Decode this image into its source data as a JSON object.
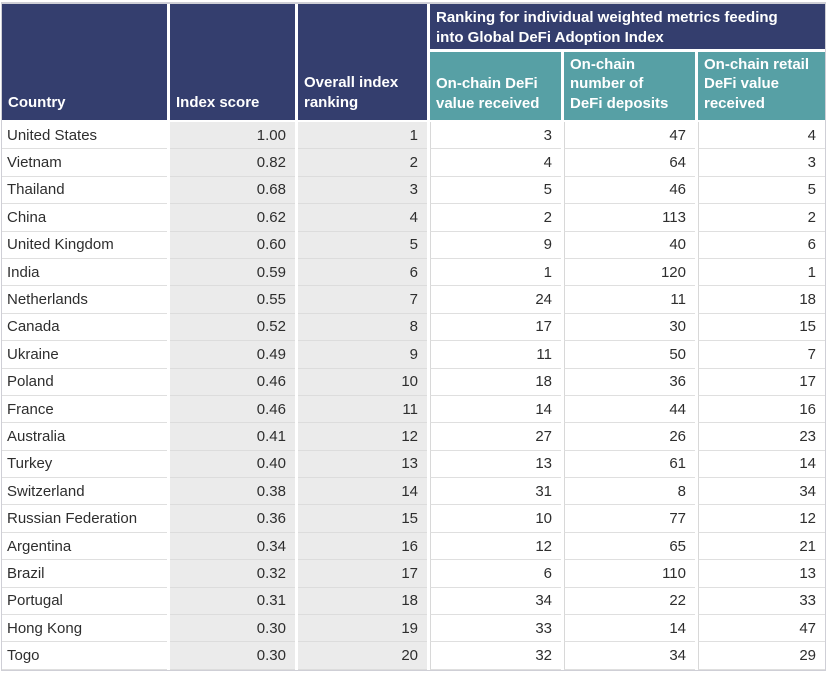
{
  "colors": {
    "header_navy": "#343e6e",
    "subheader_teal": "#57a0a5",
    "shaded_cell_gray": "#ebebeb",
    "header_text": "#ffffff",
    "body_text": "#2e2e2e"
  },
  "chart_data": {
    "type": "table",
    "headers": {
      "country": "Country",
      "index_score": "Index score",
      "overall_index_ranking": "Overall index ranking",
      "metrics_group": "Ranking for individual weighted metrics feeding into Global DeFi Adoption Index",
      "onchain_defi_value_received": "On-chain DeFi value received",
      "onchain_number_of_defi_deposits": "On-chain number of DeFi deposits",
      "onchain_retail_defi_value_received": "On-chain retail DeFi value received"
    },
    "rows": [
      {
        "country": "United States",
        "index_score": "1.00",
        "overall_index_ranking": "1",
        "onchain_defi_value_received": "3",
        "onchain_number_of_defi_deposits": "47",
        "onchain_retail_defi_value_received": "4"
      },
      {
        "country": "Vietnam",
        "index_score": "0.82",
        "overall_index_ranking": "2",
        "onchain_defi_value_received": "4",
        "onchain_number_of_defi_deposits": "64",
        "onchain_retail_defi_value_received": "3"
      },
      {
        "country": "Thailand",
        "index_score": "0.68",
        "overall_index_ranking": "3",
        "onchain_defi_value_received": "5",
        "onchain_number_of_defi_deposits": "46",
        "onchain_retail_defi_value_received": "5"
      },
      {
        "country": "China",
        "index_score": "0.62",
        "overall_index_ranking": "4",
        "onchain_defi_value_received": "2",
        "onchain_number_of_defi_deposits": "113",
        "onchain_retail_defi_value_received": "2"
      },
      {
        "country": "United Kingdom",
        "index_score": "0.60",
        "overall_index_ranking": "5",
        "onchain_defi_value_received": "9",
        "onchain_number_of_defi_deposits": "40",
        "onchain_retail_defi_value_received": "6"
      },
      {
        "country": "India",
        "index_score": "0.59",
        "overall_index_ranking": "6",
        "onchain_defi_value_received": "1",
        "onchain_number_of_defi_deposits": "120",
        "onchain_retail_defi_value_received": "1"
      },
      {
        "country": "Netherlands",
        "index_score": "0.55",
        "overall_index_ranking": "7",
        "onchain_defi_value_received": "24",
        "onchain_number_of_defi_deposits": "11",
        "onchain_retail_defi_value_received": "18"
      },
      {
        "country": "Canada",
        "index_score": "0.52",
        "overall_index_ranking": "8",
        "onchain_defi_value_received": "17",
        "onchain_number_of_defi_deposits": "30",
        "onchain_retail_defi_value_received": "15"
      },
      {
        "country": "Ukraine",
        "index_score": "0.49",
        "overall_index_ranking": "9",
        "onchain_defi_value_received": "11",
        "onchain_number_of_defi_deposits": "50",
        "onchain_retail_defi_value_received": "7"
      },
      {
        "country": "Poland",
        "index_score": "0.46",
        "overall_index_ranking": "10",
        "onchain_defi_value_received": "18",
        "onchain_number_of_defi_deposits": "36",
        "onchain_retail_defi_value_received": "17"
      },
      {
        "country": "France",
        "index_score": "0.46",
        "overall_index_ranking": "11",
        "onchain_defi_value_received": "14",
        "onchain_number_of_defi_deposits": "44",
        "onchain_retail_defi_value_received": "16"
      },
      {
        "country": "Australia",
        "index_score": "0.41",
        "overall_index_ranking": "12",
        "onchain_defi_value_received": "27",
        "onchain_number_of_defi_deposits": "26",
        "onchain_retail_defi_value_received": "23"
      },
      {
        "country": "Turkey",
        "index_score": "0.40",
        "overall_index_ranking": "13",
        "onchain_defi_value_received": "13",
        "onchain_number_of_defi_deposits": "61",
        "onchain_retail_defi_value_received": "14"
      },
      {
        "country": "Switzerland",
        "index_score": "0.38",
        "overall_index_ranking": "14",
        "onchain_defi_value_received": "31",
        "onchain_number_of_defi_deposits": "8",
        "onchain_retail_defi_value_received": "34"
      },
      {
        "country": "Russian Federation",
        "index_score": "0.36",
        "overall_index_ranking": "15",
        "onchain_defi_value_received": "10",
        "onchain_number_of_defi_deposits": "77",
        "onchain_retail_defi_value_received": "12"
      },
      {
        "country": "Argentina",
        "index_score": "0.34",
        "overall_index_ranking": "16",
        "onchain_defi_value_received": "12",
        "onchain_number_of_defi_deposits": "65",
        "onchain_retail_defi_value_received": "21"
      },
      {
        "country": "Brazil",
        "index_score": "0.32",
        "overall_index_ranking": "17",
        "onchain_defi_value_received": "6",
        "onchain_number_of_defi_deposits": "110",
        "onchain_retail_defi_value_received": "13"
      },
      {
        "country": "Portugal",
        "index_score": "0.31",
        "overall_index_ranking": "18",
        "onchain_defi_value_received": "34",
        "onchain_number_of_defi_deposits": "22",
        "onchain_retail_defi_value_received": "33"
      },
      {
        "country": "Hong Kong",
        "index_score": "0.30",
        "overall_index_ranking": "19",
        "onchain_defi_value_received": "33",
        "onchain_number_of_defi_deposits": "14",
        "onchain_retail_defi_value_received": "47"
      },
      {
        "country": "Togo",
        "index_score": "0.30",
        "overall_index_ranking": "20",
        "onchain_defi_value_received": "32",
        "onchain_number_of_defi_deposits": "34",
        "onchain_retail_defi_value_received": "29"
      }
    ]
  }
}
